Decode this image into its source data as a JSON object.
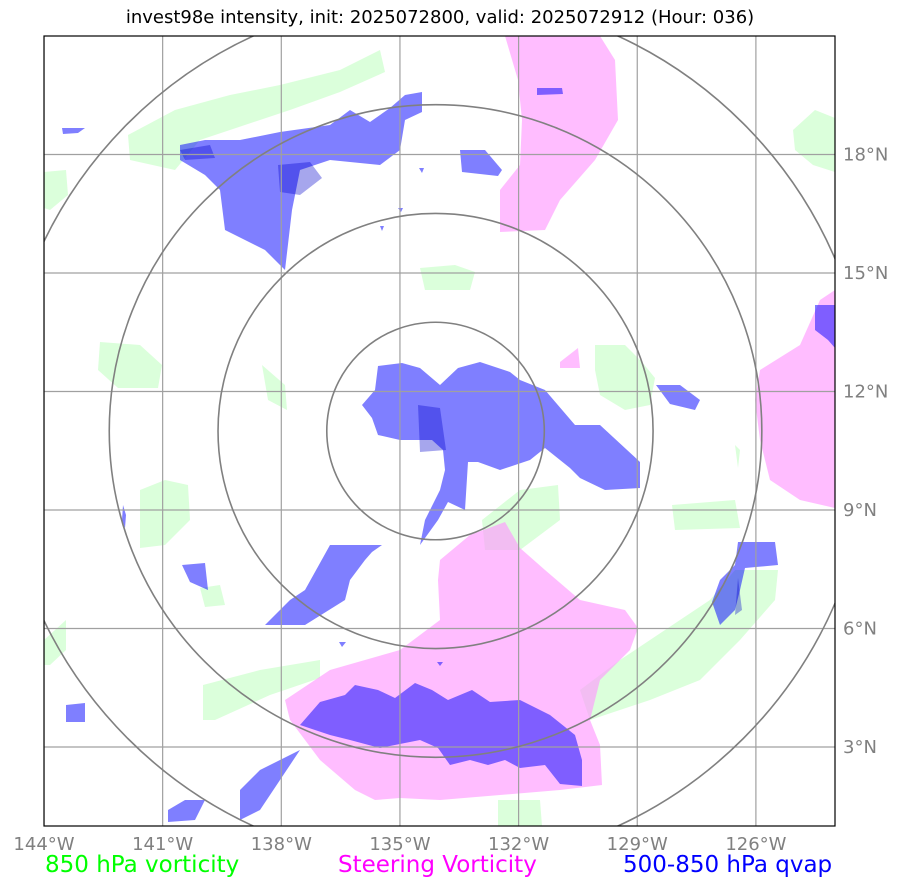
{
  "title": "invest98e intensity, init: 2025072800, valid: 2025072912 (Hour: 036)",
  "legend": [
    {
      "label": "850 hPa vorticity",
      "color": "#00ff00"
    },
    {
      "label": "Steering Vorticity",
      "color": "#ff00ff"
    },
    {
      "label": "500-850 hPa qvap",
      "color": "#0000ff"
    }
  ],
  "chart_data": {
    "type": "map",
    "x_ticks": [
      {
        "value": -144,
        "label": "144°W"
      },
      {
        "value": -141,
        "label": "141°W"
      },
      {
        "value": -138,
        "label": "138°W"
      },
      {
        "value": -135,
        "label": "135°W"
      },
      {
        "value": -132,
        "label": "132°W"
      },
      {
        "value": -129,
        "label": "129°W"
      },
      {
        "value": -126,
        "label": "126°W"
      }
    ],
    "y_ticks": [
      {
        "value": 3,
        "label": "3°N"
      },
      {
        "value": 6,
        "label": "6°N"
      },
      {
        "value": 9,
        "label": "9°N"
      },
      {
        "value": 12,
        "label": "12°N"
      },
      {
        "value": 15,
        "label": "15°N"
      },
      {
        "value": 18,
        "label": "18°N"
      }
    ],
    "xlim": [
      -144,
      -124
    ],
    "ylim": [
      1,
      21
    ],
    "grid": true,
    "storm_center": {
      "lon": -134.1,
      "lat": 11
    },
    "range_rings_deg": [
      2.75,
      5.5,
      8.25,
      11
    ],
    "field_colors": {
      "vorticity_850": "#ccffcc",
      "steering_vorticity": "#ff99ff",
      "qvap": "#0000ff"
    }
  }
}
